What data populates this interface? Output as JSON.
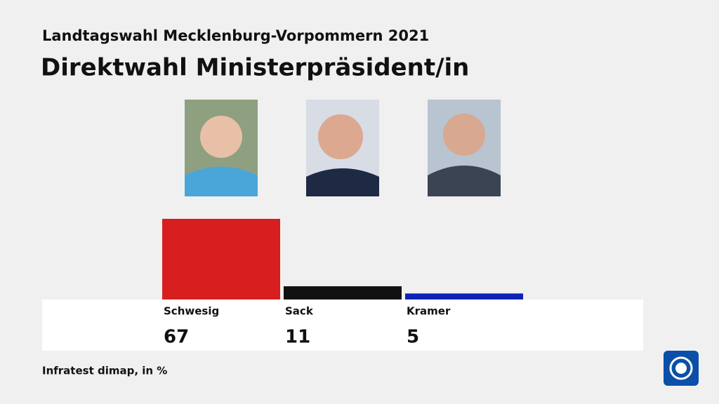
{
  "chart_data": {
    "type": "bar",
    "subtitle": "Landtagswahl Mecklenburg-Vorpommern 2021",
    "title": "Direktwahl Ministerpräsident/in",
    "categories": [
      "Schwesig",
      "Sack",
      "Kramer"
    ],
    "values": [
      67,
      11,
      5
    ],
    "colors": [
      "#d71f1f",
      "#111111",
      "#0a22b8"
    ],
    "source": "Infratest dimap, in %"
  }
}
